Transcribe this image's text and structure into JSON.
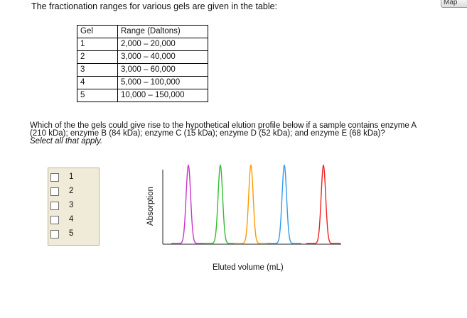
{
  "intro_text": "The fractionation ranges for various gels are given in the table:",
  "map_button": "Map",
  "table": {
    "headers": [
      "Gel",
      "Range (Daltons)"
    ],
    "rows": [
      [
        "1",
        "2,000 – 20,000"
      ],
      [
        "2",
        "3,000 – 40,000"
      ],
      [
        "3",
        "3,000 – 60,000"
      ],
      [
        "4",
        "5,000 –  100,000"
      ],
      [
        "5",
        "10,000 –  150,000"
      ]
    ]
  },
  "question": {
    "line1": "Which of the the gels could give rise to the hypothetical elution profile below if a sample contains enzyme A",
    "line2": "(210 kDa); enzyme B (84 kDa); enzyme C (15 kDa); enzyme D (52 kDa); and enzyme E (68 kDa)?",
    "instruction": "Select all that apply."
  },
  "choices": [
    "1",
    "2",
    "3",
    "4",
    "5"
  ],
  "chart_data": {
    "type": "line",
    "xlabel": "Eluted volume (mL)",
    "ylabel": "Absorption",
    "series": [
      {
        "color": "#cc33cc",
        "peak_order": 1
      },
      {
        "color": "#33bb33",
        "peak_order": 2
      },
      {
        "color": "#ff9900",
        "peak_order": 3
      },
      {
        "color": "#3399ee",
        "peak_order": 4
      },
      {
        "color": "#ee2222",
        "peak_order": 5
      }
    ],
    "grid": false
  }
}
